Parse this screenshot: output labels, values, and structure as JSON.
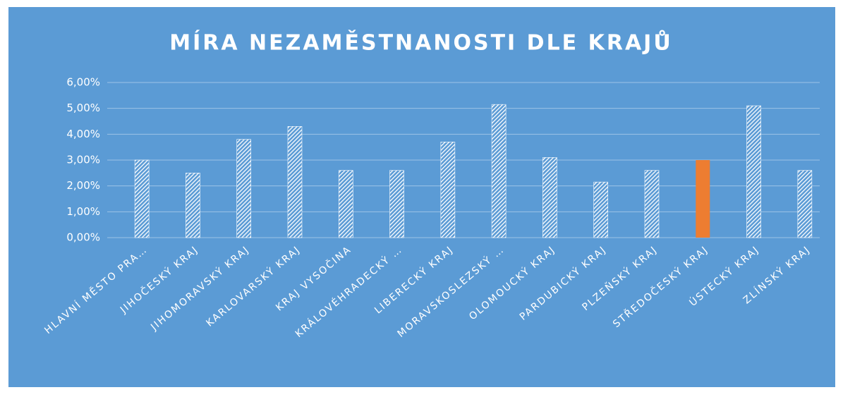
{
  "chart_data": {
    "type": "bar",
    "title": "MÍRA NEZAMĚSTNANOSTI DLE KRAJŮ",
    "categories": [
      "HLAVNÍ MĚSTO PRA…",
      "JIHOČESKÝ KRAJ",
      "JIHOMORAVSKÝ KRAJ",
      "KARLOVARSKÝ KRAJ",
      "KRAJ VYSOČINA",
      "KRÁLOVÉHRADECKÝ …",
      "LIBERECKÝ KRAJ",
      "MORAVSKOSLEZSKÝ …",
      "OLOMOUCKÝ KRAJ",
      "PARDUBICKÝ KRAJ",
      "PLZEŇSKÝ KRAJ",
      "STŘEDOČESKÝ KRAJ",
      "ÚSTECKÝ KRAJ",
      "ZLÍNSKÝ KRAJ"
    ],
    "values": [
      3.0,
      2.5,
      3.8,
      4.3,
      2.6,
      2.6,
      3.7,
      5.15,
      3.1,
      2.15,
      2.6,
      3.0,
      5.1,
      2.6
    ],
    "colors": [
      "#ffffff",
      "#ffffff",
      "#ffffff",
      "#ffffff",
      "#ffffff",
      "#ffffff",
      "#ffffff",
      "#ffffff",
      "#ffffff",
      "#ffffff",
      "#ffffff",
      "#ed7d31",
      "#ffffff",
      "#ffffff"
    ],
    "hatched": [
      true,
      true,
      true,
      true,
      true,
      true,
      true,
      true,
      true,
      true,
      true,
      false,
      true,
      true
    ],
    "ylim": [
      0,
      6
    ],
    "yticks": [
      {
        "value": 0,
        "label": "0,00%"
      },
      {
        "value": 1,
        "label": "1,00%"
      },
      {
        "value": 2,
        "label": "2,00%"
      },
      {
        "value": 3,
        "label": "3,00%"
      },
      {
        "value": 4,
        "label": "4,00%"
      },
      {
        "value": 5,
        "label": "5,00%"
      },
      {
        "value": 6,
        "label": "6,00%"
      }
    ],
    "grid": true
  }
}
